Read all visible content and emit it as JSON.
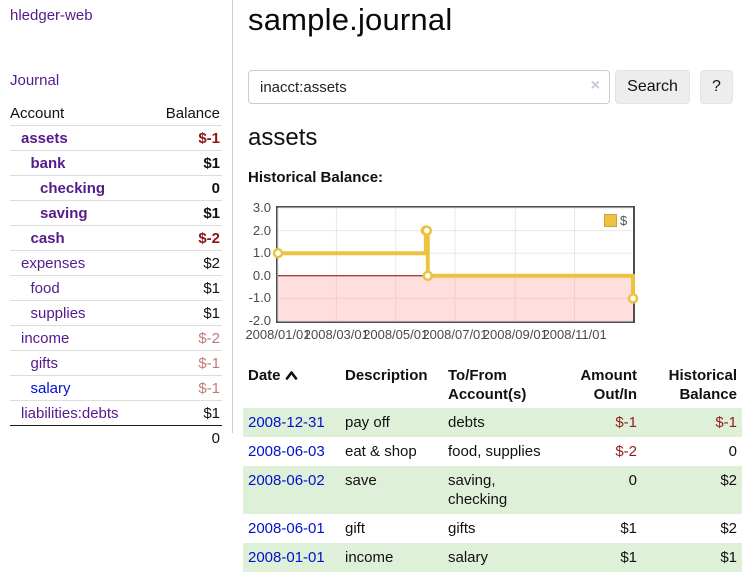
{
  "app": {
    "brand": "hledger-web",
    "nav_journal": "Journal"
  },
  "colors": {
    "accent_purple": "#551a8b",
    "link_blue": "#0011cc",
    "negative_strong": "#8b1515",
    "negative_soft": "#bf7b7b",
    "row_green": "#dff0d8",
    "series_yellow": "#edc240",
    "zero_line_red": "#8b0000",
    "negative_region_pink": "#fbdcdc"
  },
  "sidebar": {
    "headers": {
      "account": "Account",
      "balance": "Balance"
    },
    "accounts": [
      {
        "name": "assets",
        "balance": "$-1",
        "level": 1,
        "emph": true,
        "neg": "strong"
      },
      {
        "name": "bank",
        "balance": "$1",
        "level": 2,
        "emph": true,
        "neg": "none"
      },
      {
        "name": "checking",
        "balance": "0",
        "level": 3,
        "emph": true,
        "neg": "none"
      },
      {
        "name": "saving",
        "balance": "$1",
        "level": 3,
        "emph": true,
        "neg": "none"
      },
      {
        "name": "cash",
        "balance": "$-2",
        "level": 2,
        "emph": true,
        "neg": "strong"
      },
      {
        "name": "expenses",
        "balance": "$2",
        "level": 1,
        "emph": false,
        "neg": "none"
      },
      {
        "name": "food",
        "balance": "$1",
        "level": 2,
        "emph": false,
        "neg": "none"
      },
      {
        "name": "supplies",
        "balance": "$1",
        "level": 2,
        "emph": false,
        "neg": "none"
      },
      {
        "name": "income",
        "balance": "$-2",
        "level": 1,
        "emph": false,
        "neg": "soft"
      },
      {
        "name": "gifts",
        "balance": "$-1",
        "level": 2,
        "emph": false,
        "neg": "soft"
      },
      {
        "name": "salary",
        "balance": "$-1",
        "level": 2,
        "emph": false,
        "neg": "soft",
        "blue": true
      },
      {
        "name": "liabilities:debts",
        "balance": "$1",
        "level": 1,
        "emph": false,
        "neg": "none"
      }
    ],
    "total": "0"
  },
  "main": {
    "title": "sample.journal",
    "search": {
      "value": "inacct:assets",
      "clear": "×",
      "button": "Search",
      "help": "?"
    },
    "heading": "assets",
    "chart_label": "Historical Balance:"
  },
  "register": {
    "headers": {
      "date": "Date",
      "description": "Description",
      "accounts": "To/From Account(s)",
      "amount": "Amount Out/In",
      "balance": "Historical Balance"
    },
    "rows": [
      {
        "date": "2008-12-31",
        "description": "pay off",
        "accounts": "debts",
        "amount": "$-1",
        "balance": "$-1",
        "amount_neg": true,
        "balance_neg": true
      },
      {
        "date": "2008-06-03",
        "description": "eat & shop",
        "accounts": "food, supplies",
        "amount": "$-2",
        "balance": "0",
        "amount_neg": true,
        "balance_neg": false
      },
      {
        "date": "2008-06-02",
        "description": "save",
        "accounts": "saving, checking",
        "amount": "0",
        "balance": "$2",
        "amount_neg": false,
        "balance_neg": false
      },
      {
        "date": "2008-06-01",
        "description": "gift",
        "accounts": "gifts",
        "amount": "$1",
        "balance": "$2",
        "amount_neg": false,
        "balance_neg": false
      },
      {
        "date": "2008-01-01",
        "description": "income",
        "accounts": "salary",
        "amount": "$1",
        "balance": "$1",
        "amount_neg": false,
        "balance_neg": false
      }
    ]
  },
  "chart_data": {
    "type": "line",
    "title": "Historical Balance:",
    "x_start": "2008-01-01",
    "x_end": "2008-12-31",
    "ylim": [
      -2,
      3
    ],
    "y_tick_labels": [
      "3.0",
      "2.0",
      "1.0",
      "0.0",
      "-1.0",
      "-2.0"
    ],
    "x_tick_labels": [
      "2008/01/01",
      "2008/03/01",
      "2008/05/01",
      "2008/07/01",
      "2008/09/01",
      "2008/11/01"
    ],
    "grid": true,
    "legend_position": "top-right",
    "legend": [
      {
        "label": "$",
        "color": "#edc240"
      }
    ],
    "zero_line_color": "#8b0000",
    "negative_region": true,
    "series": [
      {
        "name": "$",
        "color": "#edc240",
        "step": true,
        "points": [
          {
            "x": "2008-01-01",
            "y": 1
          },
          {
            "x": "2008-06-01",
            "y": 2
          },
          {
            "x": "2008-06-02",
            "y": 2
          },
          {
            "x": "2008-06-03",
            "y": 0
          },
          {
            "x": "2008-12-31",
            "y": -1
          }
        ]
      }
    ]
  }
}
